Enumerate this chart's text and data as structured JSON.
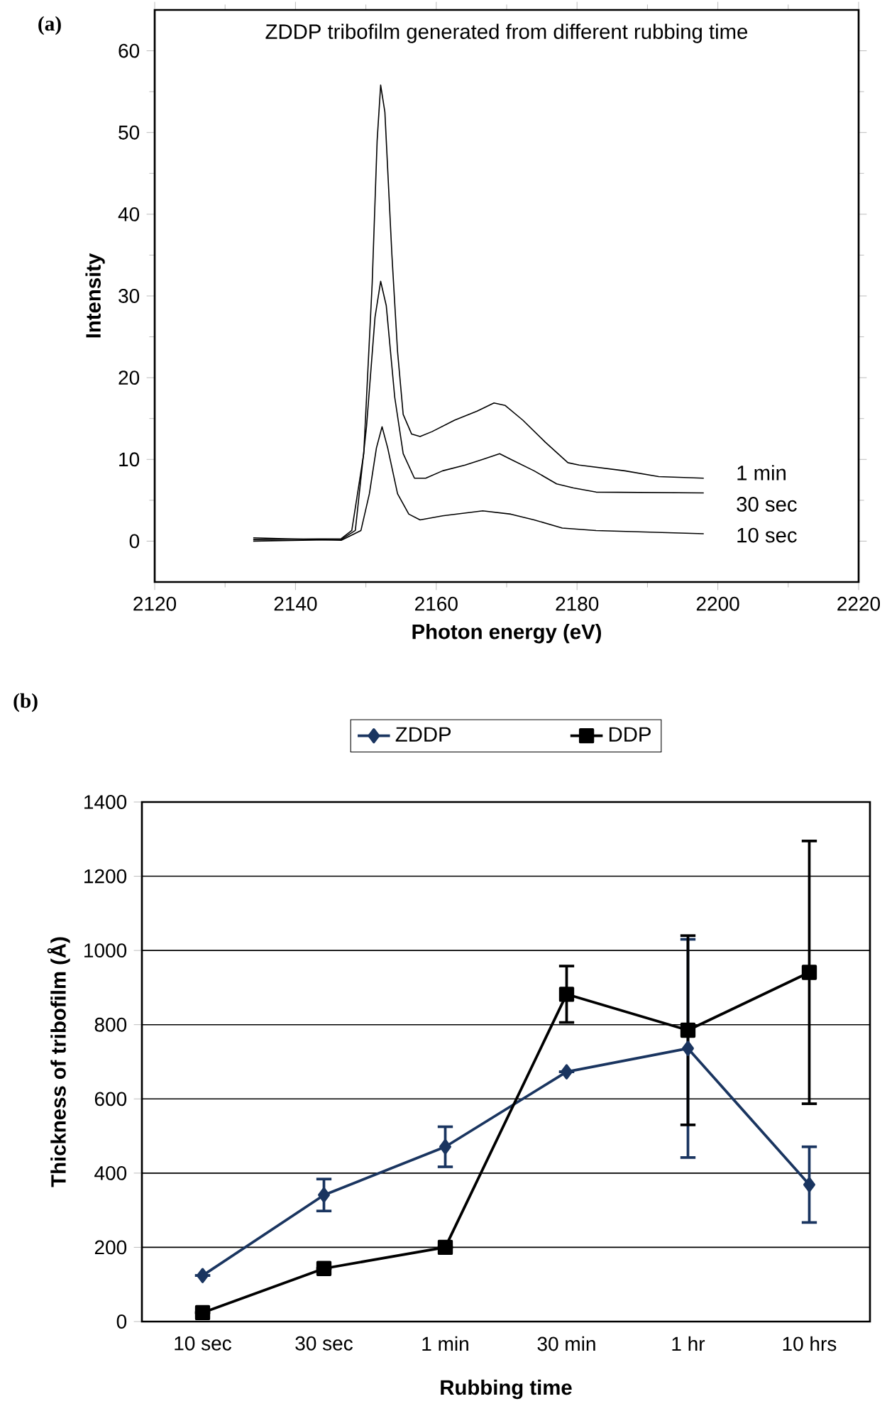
{
  "chart_data": [
    {
      "type": "line",
      "title": "ZDDP tribofilm generated from different rubbing time",
      "xlabel": "Photon energy (eV)",
      "ylabel": "Intensity",
      "annotations": [
        "(a)"
      ],
      "xlim": [
        2120,
        2220
      ],
      "ylim": [
        -5,
        65
      ],
      "xticks": [
        2120,
        2140,
        2160,
        2180,
        2200,
        2220
      ],
      "yticks": [
        0,
        10,
        20,
        30,
        40,
        50,
        60
      ],
      "marker": "none",
      "line_style": "solid",
      "series": [
        {
          "name": "1 min",
          "color": "#000000",
          "x": [
            2134,
            2146.5,
            2148,
            2149.7,
            2150.9,
            2151.6,
            2152.1,
            2152.7,
            2153.7,
            2154.5,
            2155.3,
            2156.5,
            2157.7,
            2159.4,
            2162.6,
            2165.8,
            2168.2,
            2169.8,
            2172.3,
            2175.5,
            2178.7,
            2180.3,
            2186.8,
            2191.6,
            2198
          ],
          "values": [
            0.2,
            0.3,
            1.3,
            10.7,
            31.6,
            49,
            55.8,
            52.5,
            35,
            23.2,
            15.5,
            13.1,
            12.8,
            13.4,
            14.8,
            15.9,
            16.9,
            16.6,
            14.8,
            12.1,
            9.6,
            9.3,
            8.6,
            7.9,
            7.7
          ]
        },
        {
          "name": "30 sec",
          "color": "#000000",
          "x": [
            2134,
            2146.5,
            2148.5,
            2150.1,
            2151.3,
            2152.1,
            2152.9,
            2154.1,
            2155.3,
            2156.9,
            2158.5,
            2160.9,
            2164.1,
            2166.6,
            2169,
            2170.6,
            2173.9,
            2177.1,
            2179.5,
            2182.7,
            2198
          ],
          "values": [
            0,
            0.2,
            1.3,
            14.1,
            27.4,
            31.8,
            28.8,
            17.6,
            10.7,
            7.7,
            7.7,
            8.6,
            9.3,
            10,
            10.7,
            10,
            8.6,
            7,
            6.5,
            6,
            5.9
          ]
        },
        {
          "name": "10 sec",
          "color": "#000000",
          "x": [
            2134,
            2146.5,
            2149.3,
            2150.5,
            2151.5,
            2152.3,
            2153.1,
            2154.5,
            2156.1,
            2157.7,
            2160.9,
            2166.6,
            2170.6,
            2173.9,
            2177.9,
            2182.7,
            2198
          ],
          "values": [
            0.4,
            0.1,
            1.3,
            5.8,
            11.4,
            14,
            11.4,
            5.8,
            3.3,
            2.6,
            3.1,
            3.7,
            3.3,
            2.6,
            1.6,
            1.3,
            0.9
          ]
        }
      ]
    },
    {
      "type": "line",
      "xlabel": "Rubbing time",
      "ylabel": "Thickness of tribofilm (Å)",
      "annotations": [
        "(b)"
      ],
      "categories": [
        "10 sec",
        "30 sec",
        "1 min",
        "30 min",
        "1 hr",
        "10 hrs"
      ],
      "ylim": [
        0,
        1400
      ],
      "yticks": [
        0,
        200,
        400,
        600,
        800,
        1000,
        1200,
        1400
      ],
      "grid": "y",
      "legend": "top",
      "line_style": "solid",
      "series": [
        {
          "name": "ZDDP",
          "color": "#1a3560",
          "marker": "diamond",
          "values": [
            124,
            341,
            471,
            673,
            736,
            369
          ],
          "errors": [
            null,
            43,
            54,
            null,
            294,
            102
          ]
        },
        {
          "name": "DDP",
          "color": "#000000",
          "marker": "square",
          "values": [
            24,
            143,
            200,
            882,
            785,
            941
          ],
          "errors": [
            null,
            null,
            null,
            76,
            255,
            354
          ]
        }
      ]
    }
  ]
}
